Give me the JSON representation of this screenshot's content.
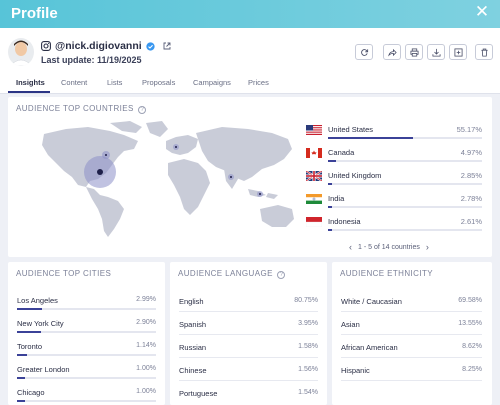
{
  "header": {
    "title": "Profile"
  },
  "profile": {
    "handle": "@nick.digiovanni",
    "last_update": "Last update: 11/19/2025"
  },
  "tabs": [
    {
      "label": "Insights",
      "active": true
    },
    {
      "label": "Content",
      "active": false
    },
    {
      "label": "Lists",
      "active": false
    },
    {
      "label": "Proposals",
      "active": false
    },
    {
      "label": "Campaigns",
      "active": false
    },
    {
      "label": "Prices",
      "active": false
    }
  ],
  "countries": {
    "title": "AUDIENCE TOP COUNTRIES",
    "items": [
      {
        "name": "United States",
        "value": "55.17%",
        "fraction": 0.5517
      },
      {
        "name": "Canada",
        "value": "4.97%",
        "fraction": 0.0497
      },
      {
        "name": "United Kingdom",
        "value": "2.85%",
        "fraction": 0.0285
      },
      {
        "name": "India",
        "value": "2.78%",
        "fraction": 0.0278
      },
      {
        "name": "Indonesia",
        "value": "2.61%",
        "fraction": 0.0261
      }
    ],
    "pager": {
      "text": "1 - 5 of 14 countries"
    }
  },
  "cities": {
    "title": "AUDIENCE TOP CITIES",
    "items": [
      {
        "name": "Los Angeles",
        "value": "2.99%",
        "fraction": 0.0299
      },
      {
        "name": "New York City",
        "value": "2.90%",
        "fraction": 0.029
      },
      {
        "name": "Toronto",
        "value": "1.14%",
        "fraction": 0.0114
      },
      {
        "name": "Greater London",
        "value": "1.00%",
        "fraction": 0.01
      },
      {
        "name": "Chicago",
        "value": "1.00%",
        "fraction": 0.01
      }
    ]
  },
  "language": {
    "title": "AUDIENCE LANGUAGE",
    "items": [
      {
        "name": "English",
        "value": "80.75%"
      },
      {
        "name": "Spanish",
        "value": "3.95%"
      },
      {
        "name": "Russian",
        "value": "1.58%"
      },
      {
        "name": "Chinese",
        "value": "1.56%"
      },
      {
        "name": "Portuguese",
        "value": "1.54%"
      }
    ]
  },
  "ethnicity": {
    "title": "AUDIENCE ETHNICITY",
    "items": [
      {
        "name": "White / Caucasian",
        "value": "69.58%"
      },
      {
        "name": "Asian",
        "value": "13.55%"
      },
      {
        "name": "African American",
        "value": "8.62%"
      },
      {
        "name": "Hispanic",
        "value": "8.25%"
      }
    ]
  },
  "colors": {
    "header_gradient_start": "#57c4d8",
    "accent": "#3b4298",
    "map_land": "#c9ccd8",
    "map_highlight": "#3a3a7a"
  },
  "toolbar_icons": [
    "refresh-icon",
    "share-icon",
    "print-icon",
    "download-icon",
    "add-to-list-icon",
    "delete-icon"
  ]
}
